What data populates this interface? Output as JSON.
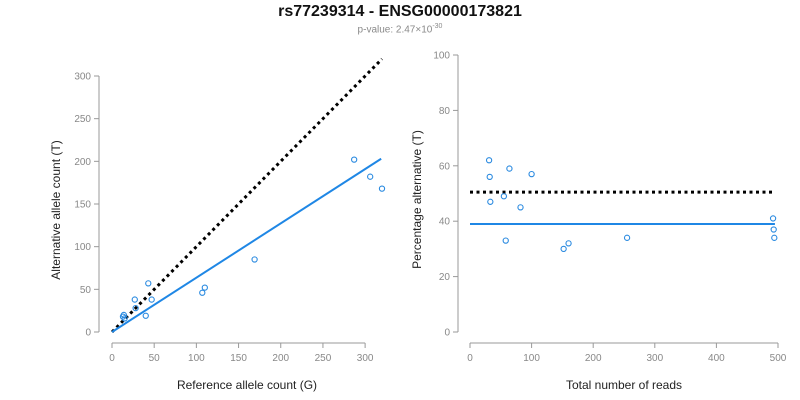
{
  "title": "rs77239314 - ENSG00000173821",
  "subtitle": {
    "prefix": "p-value: 2.47×10",
    "exponent": "-30"
  },
  "colors": {
    "points": "#2a8ae0",
    "fit_line": "#1f87e5",
    "reference_line": "#000000",
    "axis": "#999999"
  },
  "chart_data": [
    {
      "type": "scatter",
      "xlabel": "Reference allele count (G)",
      "ylabel": "Alternative allele count (T)",
      "xlim": [
        0,
        320
      ],
      "ylim": [
        0,
        300
      ],
      "xticks": [
        0,
        50,
        100,
        150,
        200,
        250,
        300
      ],
      "yticks": [
        0,
        50,
        100,
        150,
        200,
        250,
        300
      ],
      "points": [
        {
          "x": 13,
          "y": 18
        },
        {
          "x": 14,
          "y": 20
        },
        {
          "x": 15,
          "y": 16
        },
        {
          "x": 27,
          "y": 38
        },
        {
          "x": 28,
          "y": 28
        },
        {
          "x": 40,
          "y": 19
        },
        {
          "x": 43,
          "y": 57
        },
        {
          "x": 47,
          "y": 38
        },
        {
          "x": 107,
          "y": 46
        },
        {
          "x": 110,
          "y": 52
        },
        {
          "x": 169,
          "y": 85
        },
        {
          "x": 287,
          "y": 202
        },
        {
          "x": 306,
          "y": 182
        },
        {
          "x": 320,
          "y": 168
        }
      ],
      "fit_line": {
        "x": [
          0,
          319
        ],
        "y": [
          0,
          203
        ]
      },
      "reference_line": {
        "x": [
          0,
          320
        ],
        "y": [
          0,
          320
        ]
      }
    },
    {
      "type": "scatter",
      "xlabel": "Total number of reads",
      "ylabel": "Percentage alternative (T)",
      "xlim": [
        0,
        500
      ],
      "ylim": [
        0,
        100
      ],
      "xticks": [
        0,
        100,
        200,
        300,
        400,
        500
      ],
      "yticks": [
        0,
        20,
        40,
        60,
        80,
        100
      ],
      "points": [
        {
          "x": 31,
          "y": 62
        },
        {
          "x": 32,
          "y": 56
        },
        {
          "x": 33,
          "y": 47
        },
        {
          "x": 55,
          "y": 49
        },
        {
          "x": 58,
          "y": 33
        },
        {
          "x": 64,
          "y": 59
        },
        {
          "x": 82,
          "y": 45
        },
        {
          "x": 100,
          "y": 57
        },
        {
          "x": 152,
          "y": 30
        },
        {
          "x": 160,
          "y": 32
        },
        {
          "x": 255,
          "y": 34
        },
        {
          "x": 492,
          "y": 41
        },
        {
          "x": 493,
          "y": 37
        },
        {
          "x": 494,
          "y": 34
        }
      ],
      "fit_line": {
        "x": [
          0,
          495
        ],
        "y": [
          39,
          39
        ]
      },
      "reference_line": {
        "x": [
          0,
          495
        ],
        "y": [
          50.5,
          50.5
        ]
      }
    }
  ]
}
